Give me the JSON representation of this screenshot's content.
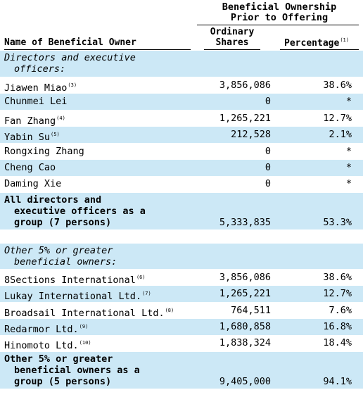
{
  "header": {
    "group_title_line1": "Beneficial Ownership",
    "group_title_line2": "Prior to Offering",
    "name_col": "Name of Beneficial Owner",
    "shares_col_line1": "Ordinary",
    "shares_col_line2": "Shares",
    "pct_col": "Percentage",
    "pct_col_note": "(1)"
  },
  "sections": {
    "directors_label_line1": "Directors and executive",
    "directors_label_line2": "officers:",
    "others_label_line1": "Other 5% or greater",
    "others_label_line2": "beneficial owners:"
  },
  "directors": [
    {
      "name": "Jiawen Miao",
      "note": "(3)",
      "shares": "3,856,086",
      "pct": "38.6%"
    },
    {
      "name": "Chunmei Lei",
      "note": "",
      "shares": "0",
      "pct": "*"
    },
    {
      "name": "Fan Zhang",
      "note": "(4)",
      "shares": "1,265,221",
      "pct": "12.7%"
    },
    {
      "name": "Yabin Su",
      "note": "(5)",
      "shares": "212,528",
      "pct": "2.1%"
    },
    {
      "name": "Rongxing Zhang",
      "note": "",
      "shares": "0",
      "pct": "*"
    },
    {
      "name": "Cheng Cao",
      "note": "",
      "shares": "0",
      "pct": "*"
    },
    {
      "name": "Daming Xie",
      "note": "",
      "shares": "0",
      "pct": "*"
    }
  ],
  "directors_total": {
    "line1": "All directors and",
    "line2": "executive officers as a",
    "line3": "group (7 persons)",
    "shares": "5,333,835",
    "pct": "53.3%"
  },
  "others": [
    {
      "name": "8Sections International",
      "note": "(6)",
      "shares": "3,856,086",
      "pct": "38.6%"
    },
    {
      "name": "Lukay International Ltd.",
      "note": "(7)",
      "shares": "1,265,221",
      "pct": "12.7%"
    },
    {
      "name": "Broadsail International Ltd.",
      "note": "(8)",
      "shares": "764,511",
      "pct": "7.6%"
    },
    {
      "name": "Redarmor Ltd.",
      "note": "(9)",
      "shares": "1,680,858",
      "pct": "16.8%"
    },
    {
      "name": "Hinomoto Ltd.",
      "note": "(10)",
      "shares": "1,838,324",
      "pct": "18.4%"
    }
  ],
  "others_total": {
    "line1": "Other 5% or greater",
    "line2": "beneficial owners as a",
    "line3": "group (5 persons)",
    "shares": "9,405,000",
    "pct": "94.1%"
  }
}
